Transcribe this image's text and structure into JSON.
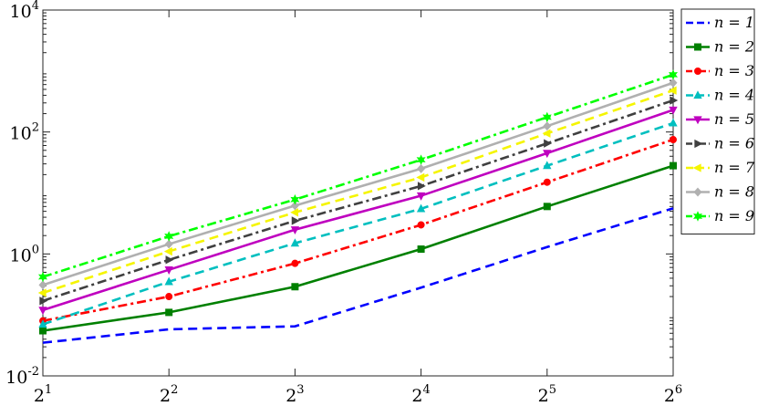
{
  "chart_data": {
    "type": "line",
    "title": "",
    "xlabel": "",
    "ylabel": "",
    "xscale": "log2",
    "yscale": "log10",
    "xlim": [
      2,
      64
    ],
    "ylim": [
      0.01,
      10000
    ],
    "x": [
      2,
      4,
      8,
      16,
      32,
      64
    ],
    "x_ticks": [
      {
        "value": 2,
        "base": "2",
        "exp": "1"
      },
      {
        "value": 4,
        "base": "2",
        "exp": "2"
      },
      {
        "value": 8,
        "base": "2",
        "exp": "3"
      },
      {
        "value": 16,
        "base": "2",
        "exp": "4"
      },
      {
        "value": 32,
        "base": "2",
        "exp": "5"
      },
      {
        "value": 64,
        "base": "2",
        "exp": "6"
      }
    ],
    "y_ticks": [
      {
        "value": 0.01,
        "base": "10",
        "exp": "-2"
      },
      {
        "value": 1,
        "base": "10",
        "exp": "0"
      },
      {
        "value": 100,
        "base": "10",
        "exp": "2"
      },
      {
        "value": 10000,
        "base": "10",
        "exp": "4"
      }
    ],
    "grid": false,
    "legend_position": "right-outside-top",
    "series": [
      {
        "name": "n = 1",
        "color": "#0000ff",
        "dash": "dashed",
        "marker": "none",
        "values": [
          0.035,
          0.058,
          0.065,
          0.28,
          1.3,
          5.6
        ]
      },
      {
        "name": "n = 2",
        "color": "#008000",
        "dash": "solid",
        "marker": "square",
        "values": [
          0.055,
          0.11,
          0.29,
          1.2,
          6.0,
          28
        ]
      },
      {
        "name": "n = 3",
        "color": "#ff0000",
        "dash": "dashdot",
        "marker": "circle",
        "values": [
          0.08,
          0.2,
          0.7,
          3.0,
          15,
          75
        ]
      },
      {
        "name": "n = 4",
        "color": "#00bfbf",
        "dash": "dashed",
        "marker": "triangle-up",
        "values": [
          0.07,
          0.35,
          1.5,
          5.5,
          28,
          140
        ]
      },
      {
        "name": "n = 5",
        "color": "#bf00bf",
        "dash": "solid",
        "marker": "triangle-down",
        "values": [
          0.12,
          0.55,
          2.5,
          9.0,
          45,
          230
        ]
      },
      {
        "name": "n = 6",
        "color": "#404040",
        "dash": "dashdot",
        "marker": "triangle-right",
        "values": [
          0.17,
          0.8,
          3.5,
          13,
          65,
          330
        ]
      },
      {
        "name": "n = 7",
        "color": "#f5f500",
        "dash": "dashed",
        "marker": "triangle-left",
        "values": [
          0.23,
          1.1,
          4.8,
          18,
          95,
          480
        ]
      },
      {
        "name": "n = 8",
        "color": "#b0b0b0",
        "dash": "solid",
        "marker": "diamond",
        "values": [
          0.31,
          1.45,
          6.2,
          25,
          125,
          640
        ]
      },
      {
        "name": "n = 9",
        "color": "#00ff00",
        "dash": "dashdot",
        "marker": "hexagram",
        "values": [
          0.42,
          1.95,
          7.8,
          35,
          175,
          870
        ]
      }
    ]
  }
}
